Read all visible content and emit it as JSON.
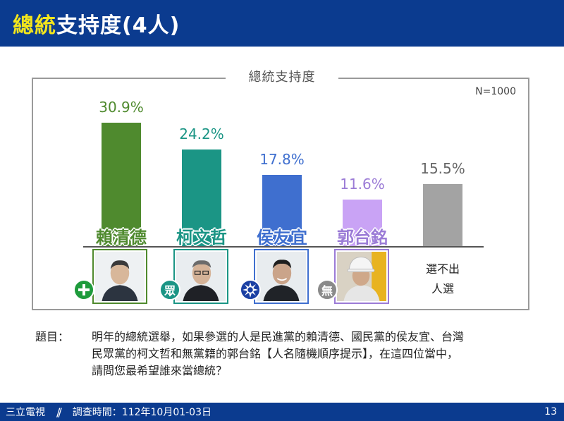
{
  "header": {
    "title_highlight": "總統",
    "title_rest": "支持度(4人)",
    "accent_color": "#f4e61c",
    "background_color": "#0b3b8f"
  },
  "chart_data": {
    "type": "bar",
    "title": "總統支持度",
    "note": "N=1000",
    "categories": [
      "賴清德",
      "柯文哲",
      "侯友宜",
      "郭台銘",
      "選不出人選"
    ],
    "values": [
      30.9,
      24.2,
      17.8,
      11.6,
      15.5
    ],
    "value_labels": [
      "30.9%",
      "24.2%",
      "17.8%",
      "11.6%",
      "15.5%"
    ],
    "colors": [
      "#4f8a2e",
      "#1b9585",
      "#3f6fcf",
      "#c9a3f5",
      "#a3a3a3"
    ],
    "ylim": [
      0,
      35
    ],
    "unit": "%",
    "grid": false
  },
  "candidates": [
    {
      "name": "賴清德",
      "party_icon": "dpp-flag-icon",
      "color": "#4f8a2e"
    },
    {
      "name": "柯文哲",
      "party_icon": "tpp-icon",
      "party_text": "眾",
      "color": "#1b9585"
    },
    {
      "name": "侯友宜",
      "party_icon": "kmt-sun-icon",
      "color": "#3f6fcf"
    },
    {
      "name": "郭台銘",
      "party_icon": "independent-icon",
      "party_text": "無",
      "color": "#9b7bd6"
    }
  ],
  "none_option": {
    "line1": "選不出",
    "line2": "人選"
  },
  "question": {
    "label": "題目：",
    "line1": "明年的總統選舉，如果參選的人是民進黨的賴清德、國民黨的侯友宜、台灣",
    "line2": "民眾黨的柯文哲和無黨籍的郭台銘【人名隨機順序提示】，在這四位當中，",
    "line3": "請問您最希望誰來當總統？"
  },
  "footer": {
    "source": "三立電視",
    "divider": "//",
    "survey_date": "調查時間：112年10月01-03日",
    "page": "13"
  }
}
